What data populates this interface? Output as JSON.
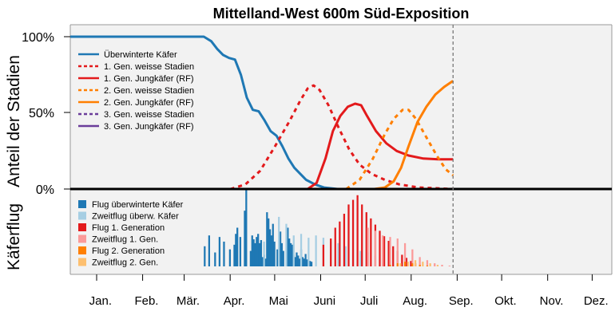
{
  "chart_data": {
    "type": "line",
    "title": "Mittelland-West 600m Süd-Exposition",
    "ylabel_top": "Anteil der Stadien",
    "ylabel_bottom": "Käferflug",
    "yticks": [
      "100%",
      "50%",
      "0%"
    ],
    "ylim": [
      0,
      100
    ],
    "xlim": [
      0,
      365
    ],
    "current_day_marker": 258,
    "months": [
      "Jan.",
      "Feb.",
      "Mär.",
      "Apr.",
      "Mai",
      "Juni",
      "Juli",
      "Aug.",
      "Sep.",
      "Okt.",
      "Nov.",
      "Dez."
    ],
    "lines": [
      {
        "name": "Überwinterte Käfer",
        "color": "#1f78b4",
        "dash": false,
        "points": [
          [
            0,
            100
          ],
          [
            90,
            100
          ],
          [
            95,
            97
          ],
          [
            99,
            92
          ],
          [
            103,
            88
          ],
          [
            107,
            86
          ],
          [
            111,
            85
          ],
          [
            115,
            75
          ],
          [
            119,
            60
          ],
          [
            123,
            52
          ],
          [
            127,
            51
          ],
          [
            131,
            45
          ],
          [
            135,
            38
          ],
          [
            139,
            35
          ],
          [
            143,
            28
          ],
          [
            147,
            20
          ],
          [
            151,
            14
          ],
          [
            155,
            10
          ],
          [
            159,
            6
          ],
          [
            165,
            3
          ],
          [
            171,
            1
          ],
          [
            180,
            0
          ],
          [
            258,
            0
          ]
        ]
      },
      {
        "name": "1. Gen. weisse Stadien",
        "color": "#e31a1c",
        "dash": true,
        "points": [
          [
            108,
            0
          ],
          [
            118,
            3
          ],
          [
            128,
            12
          ],
          [
            138,
            28
          ],
          [
            148,
            45
          ],
          [
            155,
            58
          ],
          [
            160,
            66
          ],
          [
            164,
            68
          ],
          [
            168,
            65
          ],
          [
            174,
            55
          ],
          [
            181,
            40
          ],
          [
            188,
            26
          ],
          [
            195,
            16
          ],
          [
            203,
            10
          ],
          [
            212,
            6
          ],
          [
            222,
            3
          ],
          [
            235,
            1
          ],
          [
            258,
            0
          ]
        ]
      },
      {
        "name": "1. Gen. Jungkäfer (RF)",
        "color": "#e31a1c",
        "dash": false,
        "points": [
          [
            160,
            0
          ],
          [
            166,
            4
          ],
          [
            172,
            20
          ],
          [
            177,
            38
          ],
          [
            182,
            48
          ],
          [
            187,
            54
          ],
          [
            192,
            56
          ],
          [
            196,
            55
          ],
          [
            200,
            48
          ],
          [
            206,
            38
          ],
          [
            213,
            30
          ],
          [
            220,
            25
          ],
          [
            228,
            22
          ],
          [
            238,
            20
          ],
          [
            248,
            19.5
          ],
          [
            258,
            19.5
          ]
        ]
      },
      {
        "name": "2. Gen. weisse Stadien",
        "color": "#ff7f00",
        "dash": true,
        "points": [
          [
            186,
            0
          ],
          [
            195,
            6
          ],
          [
            204,
            20
          ],
          [
            212,
            36
          ],
          [
            218,
            46
          ],
          [
            224,
            52
          ],
          [
            228,
            52
          ],
          [
            233,
            46
          ],
          [
            240,
            34
          ],
          [
            247,
            22
          ],
          [
            253,
            13
          ],
          [
            258,
            9
          ]
        ]
      },
      {
        "name": "2. Gen. Jungkäfer (RF)",
        "color": "#ff7f00",
        "dash": false,
        "points": [
          [
            205,
            0
          ],
          [
            212,
            1
          ],
          [
            218,
            5
          ],
          [
            223,
            14
          ],
          [
            228,
            28
          ],
          [
            234,
            44
          ],
          [
            240,
            54
          ],
          [
            246,
            62
          ],
          [
            252,
            67
          ],
          [
            258,
            71
          ]
        ]
      },
      {
        "name": "3. Gen. weisse Stadien",
        "color": "#6a3d9a",
        "dash": true,
        "points": []
      },
      {
        "name": "3. Gen. Jungkäfer (RF)",
        "color": "#6a3d9a",
        "dash": false,
        "points": []
      }
    ],
    "flight_series": [
      {
        "name": "Flug überwinterte Käfer",
        "color": "#1f78b4",
        "days": [
          90,
          93,
          97,
          100,
          103,
          107,
          110,
          111,
          112,
          114,
          117,
          118,
          121,
          122,
          123,
          124,
          125,
          126,
          127,
          128,
          129,
          130,
          131,
          132,
          133,
          134,
          135,
          136,
          137,
          139,
          141,
          142,
          143,
          146,
          147,
          148,
          149,
          150,
          151,
          152,
          153,
          154,
          155,
          156,
          157,
          158,
          159,
          160,
          161,
          162
        ],
        "values": [
          26,
          40,
          18,
          38,
          32,
          22,
          28,
          42,
          50,
          38,
          72,
          100,
          20,
          40,
          35,
          30,
          38,
          42,
          30,
          34,
          12,
          15,
          10,
          70,
          62,
          48,
          40,
          55,
          32,
          22,
          45,
          30,
          20,
          50,
          36,
          30,
          28,
          15,
          12,
          18,
          14,
          10,
          22,
          12,
          10,
          16,
          9,
          8,
          7,
          6
        ]
      },
      {
        "name": "Zweitflug überw. Käfer",
        "color": "#a6cee3",
        "days": [
          130,
          140,
          145,
          150,
          155,
          160,
          165,
          170,
          175,
          180,
          185,
          190,
          195,
          200,
          205,
          210,
          215,
          220,
          225
        ],
        "values": [
          32,
          64,
          55,
          40,
          42,
          37,
          40,
          37,
          32,
          30,
          26,
          22,
          20,
          18,
          14,
          10,
          8,
          5,
          2
        ]
      },
      {
        "name": "Flug 1. Generation",
        "color": "#e31a1c",
        "days": [
          170,
          175,
          178,
          181,
          184,
          187,
          190,
          193,
          196,
          199,
          202,
          205,
          208,
          211,
          214,
          217,
          220,
          223,
          226,
          229,
          232
        ],
        "values": [
          28,
          36,
          50,
          58,
          68,
          80,
          86,
          92,
          80,
          70,
          62,
          54,
          46,
          39,
          33,
          26,
          20,
          15,
          11,
          7,
          4
        ]
      },
      {
        "name": "Zweitflug 1. Gen.",
        "color": "#fb9a99",
        "days": [
          200,
          205,
          210,
          215,
          220,
          225,
          230,
          235,
          240,
          245,
          250,
          255
        ],
        "values": [
          50,
          46,
          40,
          38,
          36,
          30,
          22,
          12,
          8,
          4,
          2,
          1
        ]
      },
      {
        "name": "Flug 2. Generation",
        "color": "#ff7f00",
        "days": [
          215,
          220,
          225,
          230,
          235,
          240
        ],
        "values": [
          2,
          4,
          6,
          4,
          2,
          1
        ]
      },
      {
        "name": "Zweitflug 2. Gen.",
        "color": "#fdbf6f",
        "days": [
          222,
          227,
          232,
          237,
          242,
          247
        ],
        "values": [
          4,
          6,
          8,
          6,
          4,
          2
        ]
      }
    ],
    "legend_top": [
      "Überwinterte Käfer",
      "1. Gen. weisse Stadien",
      "1. Gen. Jungkäfer (RF)",
      "2. Gen. weisse Stadien",
      "2. Gen. Jungkäfer (RF)",
      "3. Gen. weisse Stadien",
      "3. Gen. Jungkäfer (RF)"
    ],
    "legend_bottom": [
      "Flug überwinterte Käfer",
      "Zweitflug überw. Käfer",
      "Flug 1. Generation",
      "Zweitflug 1. Gen.",
      "Flug 2. Generation",
      "Zweitflug 2. Gen."
    ]
  }
}
